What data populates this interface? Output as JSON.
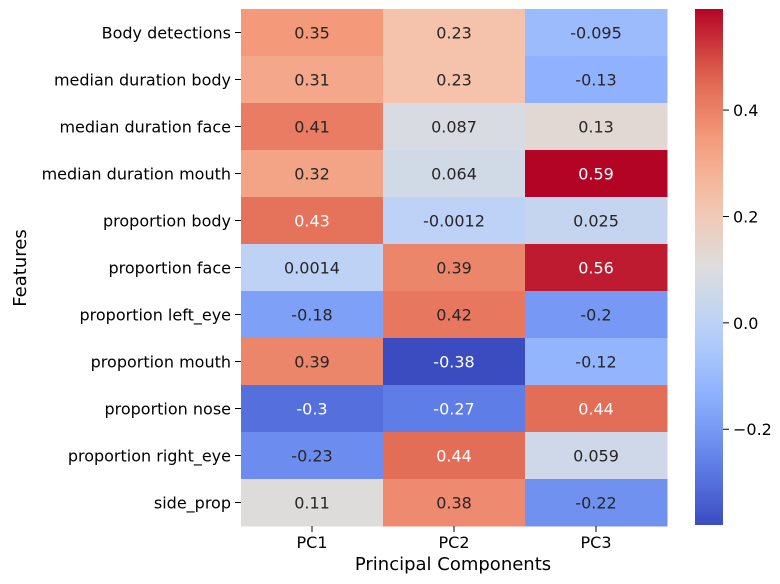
{
  "chart_data": {
    "type": "heatmap",
    "xlabel": "Principal Components",
    "ylabel": "Features",
    "x_categories": [
      "PC1",
      "PC2",
      "PC3"
    ],
    "y_categories": [
      "Body detections",
      "median duration body",
      "median duration face",
      "median duration mouth",
      "proportion body",
      "proportion face",
      "proportion left_eye",
      "proportion mouth",
      "proportion nose",
      "proportion right_eye",
      "side_prop"
    ],
    "values": [
      [
        0.35,
        0.23,
        -0.095
      ],
      [
        0.31,
        0.23,
        -0.13
      ],
      [
        0.41,
        0.087,
        0.13
      ],
      [
        0.32,
        0.064,
        0.59
      ],
      [
        0.43,
        -0.0012,
        0.025
      ],
      [
        0.0014,
        0.39,
        0.56
      ],
      [
        -0.18,
        0.42,
        -0.2
      ],
      [
        0.39,
        -0.38,
        -0.12
      ],
      [
        -0.3,
        -0.27,
        0.44
      ],
      [
        -0.23,
        0.44,
        0.059
      ],
      [
        0.11,
        0.38,
        -0.22
      ]
    ],
    "value_labels": [
      [
        "0.35",
        "0.23",
        "-0.095"
      ],
      [
        "0.31",
        "0.23",
        "-0.13"
      ],
      [
        "0.41",
        "0.087",
        "0.13"
      ],
      [
        "0.32",
        "0.064",
        "0.59"
      ],
      [
        "0.43",
        "-0.0012",
        "0.025"
      ],
      [
        "0.0014",
        "0.39",
        "0.56"
      ],
      [
        "-0.18",
        "0.42",
        "-0.2"
      ],
      [
        "0.39",
        "-0.38",
        "-0.12"
      ],
      [
        "-0.3",
        "-0.27",
        "0.44"
      ],
      [
        "-0.23",
        "0.44",
        "0.059"
      ],
      [
        "0.11",
        "0.38",
        "-0.22"
      ]
    ],
    "colormap": "coolwarm",
    "color_range": [
      -0.38,
      0.59
    ],
    "colorbar": {
      "position": "right",
      "ticks": [
        -0.2,
        0.0,
        0.2,
        0.4
      ],
      "tick_labels": [
        "−0.2",
        "0.0",
        "0.2",
        "0.4"
      ]
    }
  }
}
